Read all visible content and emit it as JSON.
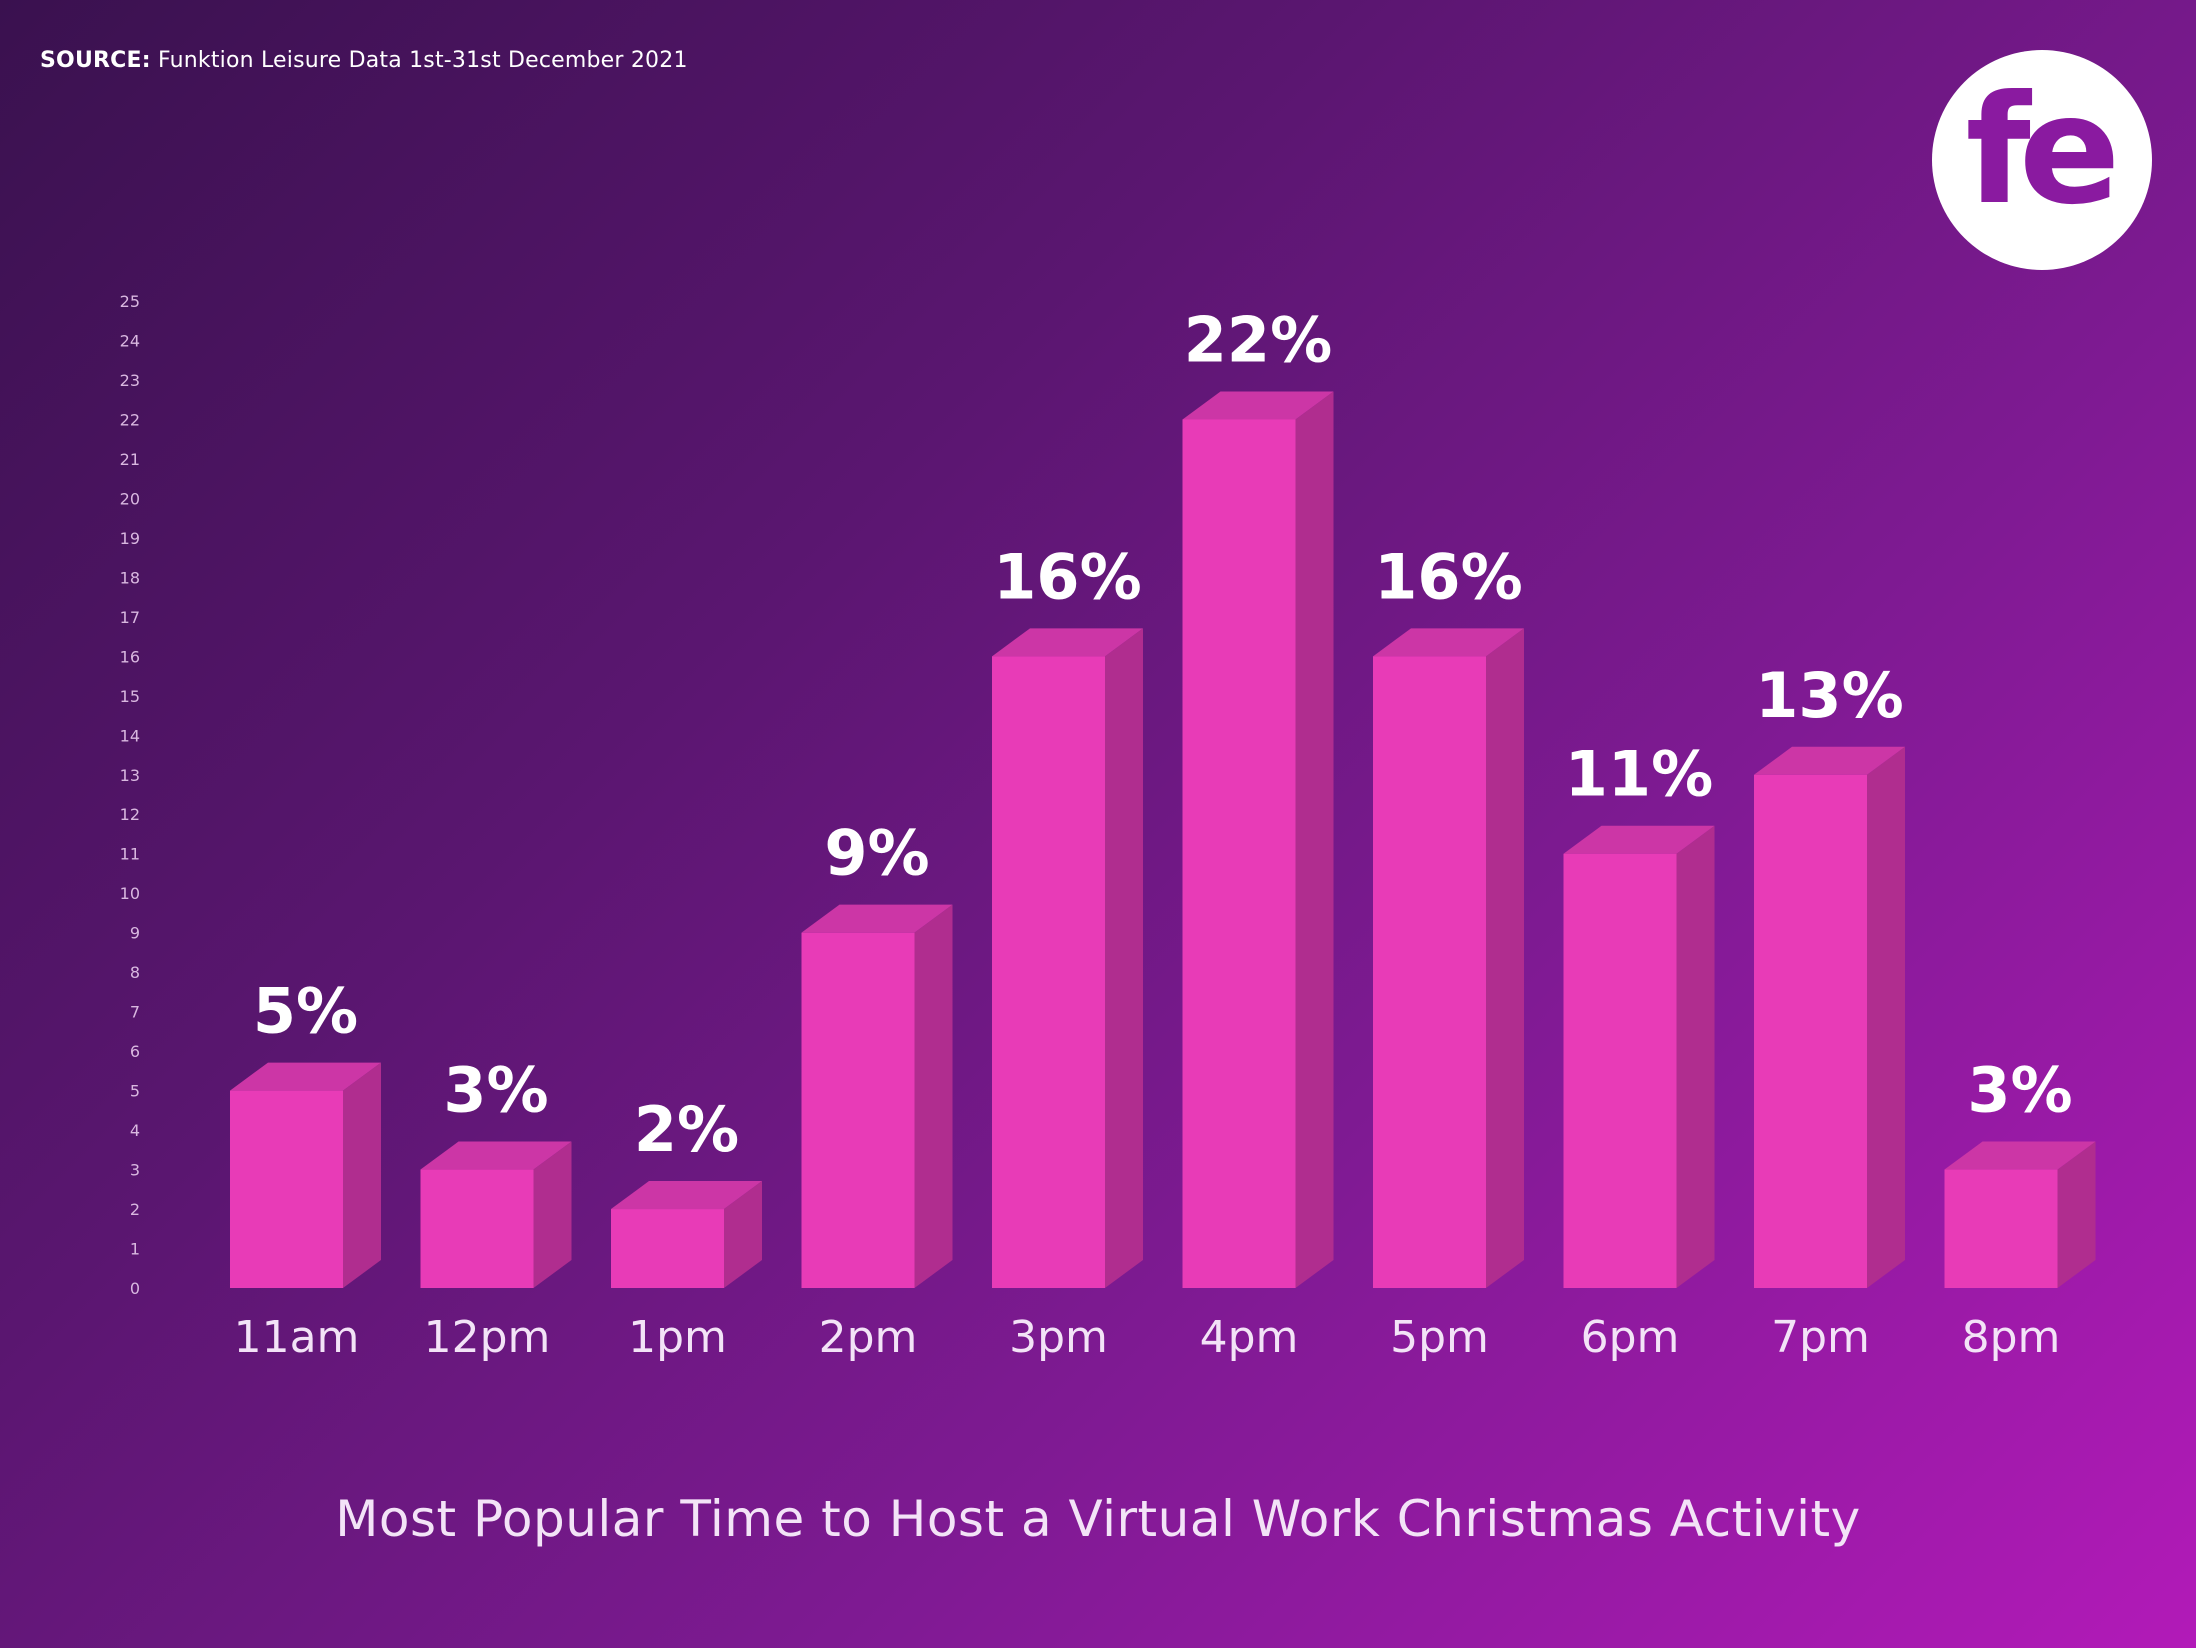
{
  "source": {
    "label": "SOURCE:",
    "text": "Funktion Leisure Data 1st-31st December 2021"
  },
  "logo": {
    "text": "fe",
    "background": "#ffffff",
    "color": "#8a1aa0"
  },
  "chart_data": {
    "type": "bar",
    "title": "Most Popular Time to Host a Virtual Work Christmas Activity",
    "xlabel": "",
    "ylabel": "",
    "categories": [
      "11am",
      "12pm",
      "1pm",
      "2pm",
      "3pm",
      "4pm",
      "5pm",
      "6pm",
      "7pm",
      "8pm"
    ],
    "values": [
      5,
      3,
      2,
      9,
      16,
      22,
      16,
      11,
      13,
      3
    ],
    "data_labels": [
      "5%",
      "3%",
      "2%",
      "9%",
      "16%",
      "22%",
      "16%",
      "11%",
      "13%",
      "3%"
    ],
    "ylim": [
      0,
      25
    ],
    "yticks": [
      0,
      1,
      2,
      3,
      4,
      5,
      6,
      7,
      8,
      9,
      10,
      11,
      12,
      13,
      14,
      15,
      16,
      17,
      18,
      19,
      20,
      21,
      22,
      23,
      24,
      25
    ],
    "grid": false,
    "legend": "none",
    "colors": {
      "bar_front": "#e83bb7",
      "bar_side": "#b02d8f",
      "bar_top": "#cc36a6",
      "label": "#ffffff",
      "tick": "#d9b8e0",
      "category": "#f3e3f7"
    }
  }
}
